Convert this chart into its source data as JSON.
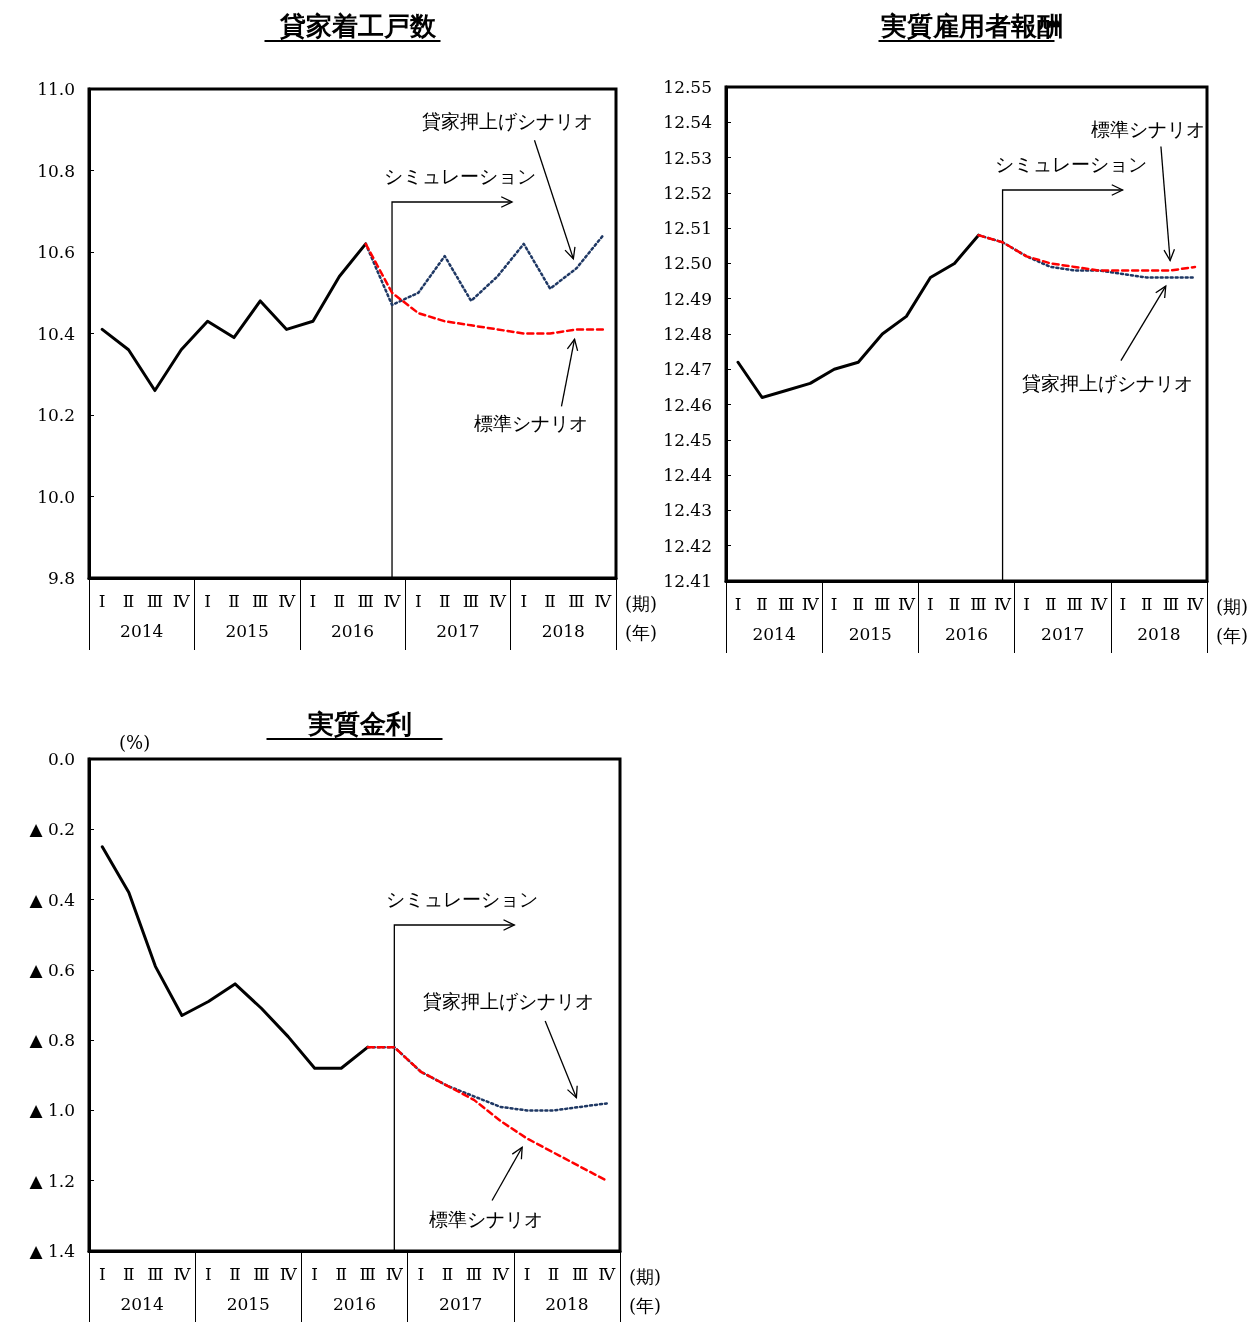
{
  "chart_data": [
    {
      "type": "line",
      "title": "貸家着工戸数",
      "xlabel": "(期)",
      "marker": "none",
      "grid": false,
      "legend": false,
      "categories": [
        "Ⅰ",
        "Ⅱ",
        "Ⅲ",
        "Ⅳ",
        "Ⅰ",
        "Ⅱ",
        "Ⅲ",
        "Ⅳ",
        "Ⅰ",
        "Ⅱ",
        "Ⅲ",
        "Ⅳ",
        "Ⅰ",
        "Ⅱ",
        "Ⅲ",
        "Ⅳ",
        "Ⅰ",
        "Ⅱ",
        "Ⅲ",
        "Ⅳ"
      ],
      "ylim": [
        9.8,
        11.0
      ],
      "yticks": [
        9.8,
        {
          "value": 10,
          "label": "10.0"
        },
        10.2,
        10.4,
        10.6,
        10.8,
        {
          "value": 11,
          "label": "11.0"
        }
      ],
      "series": [
        {
          "color": "#000000",
          "line_style": "solid",
          "values": [
            10.41,
            10.36,
            10.26,
            10.36,
            10.43,
            10.39,
            10.48,
            10.41,
            10.43,
            10.54,
            10.62,
            null,
            null,
            null,
            null,
            null,
            null,
            null,
            null,
            null
          ]
        },
        {
          "name": "標準シナリオ",
          "color": "#ff0000",
          "line_style": "dashed",
          "values": [
            null,
            null,
            null,
            null,
            null,
            null,
            null,
            null,
            null,
            null,
            10.62,
            10.5,
            10.45,
            10.43,
            10.42,
            10.41,
            10.4,
            10.4,
            10.41,
            10.41
          ]
        },
        {
          "name": "貸家押上げシナリオ",
          "color": "#1f3864",
          "line_style": "dotted",
          "values": [
            null,
            null,
            null,
            null,
            null,
            null,
            null,
            null,
            null,
            null,
            10.62,
            10.47,
            10.5,
            10.59,
            10.48,
            10.54,
            10.62,
            10.51,
            10.56,
            10.64
          ]
        }
      ],
      "annotations": [
        "シミュレーション",
        "2014",
        "2015",
        "2016",
        "2017",
        "2018",
        "(年)"
      ]
    },
    {
      "type": "line",
      "title": "実質雇用者報酬",
      "xlabel": "(期)",
      "marker": "none",
      "grid": false,
      "legend": false,
      "categories": [
        "Ⅰ",
        "Ⅱ",
        "Ⅲ",
        "Ⅳ",
        "Ⅰ",
        "Ⅱ",
        "Ⅲ",
        "Ⅳ",
        "Ⅰ",
        "Ⅱ",
        "Ⅲ",
        "Ⅳ",
        "Ⅰ",
        "Ⅱ",
        "Ⅲ",
        "Ⅳ",
        "Ⅰ",
        "Ⅱ",
        "Ⅲ",
        "Ⅳ"
      ],
      "ylim": [
        12.41,
        12.55
      ],
      "yticks": [
        12.41,
        12.42,
        12.43,
        12.44,
        12.45,
        12.46,
        12.47,
        12.48,
        12.49,
        {
          "value": 12.5,
          "label": "12.50"
        },
        12.51,
        12.52,
        12.53,
        12.54,
        12.55
      ],
      "series": [
        {
          "color": "#000000",
          "line_style": "solid",
          "values": [
            12.472,
            12.462,
            12.464,
            12.466,
            12.47,
            12.472,
            12.48,
            12.485,
            12.496,
            12.5,
            12.508,
            null,
            null,
            null,
            null,
            null,
            null,
            null,
            null,
            null
          ]
        },
        {
          "name": "標準シナリオ",
          "color": "#ff0000",
          "line_style": "dashed",
          "values": [
            null,
            null,
            null,
            null,
            null,
            null,
            null,
            null,
            null,
            null,
            12.508,
            12.506,
            12.502,
            12.5,
            12.499,
            12.498,
            12.498,
            12.498,
            12.498,
            12.499
          ]
        },
        {
          "name": "貸家押上げシナリオ",
          "color": "#1f3864",
          "line_style": "dotted",
          "values": [
            null,
            null,
            null,
            null,
            null,
            null,
            null,
            null,
            null,
            null,
            12.508,
            12.506,
            12.502,
            12.499,
            12.498,
            12.498,
            12.497,
            12.496,
            12.496,
            12.496
          ]
        }
      ],
      "annotations": [
        "シミュレーション",
        "2014",
        "2015",
        "2016",
        "2017",
        "2018",
        "(年)"
      ]
    },
    {
      "type": "line",
      "title": "実質金利",
      "ylabel": "(%)",
      "xlabel": "(期)",
      "marker": "none",
      "grid": false,
      "legend": false,
      "categories": [
        "Ⅰ",
        "Ⅱ",
        "Ⅲ",
        "Ⅳ",
        "Ⅰ",
        "Ⅱ",
        "Ⅲ",
        "Ⅳ",
        "Ⅰ",
        "Ⅱ",
        "Ⅲ",
        "Ⅳ",
        "Ⅰ",
        "Ⅱ",
        "Ⅲ",
        "Ⅳ",
        "Ⅰ",
        "Ⅱ",
        "Ⅲ",
        "Ⅳ"
      ],
      "ylim": [
        -1.4,
        0
      ],
      "yticks": [
        {
          "value": -1.4,
          "label": "▲ 1.4"
        },
        {
          "value": -1.2,
          "label": "▲ 1.2"
        },
        {
          "value": -1.0,
          "label": "▲ 1.0"
        },
        {
          "value": -0.8,
          "label": "▲ 0.8"
        },
        {
          "value": -0.6,
          "label": "▲ 0.6"
        },
        {
          "value": -0.4,
          "label": "▲ 0.4"
        },
        {
          "value": -0.2,
          "label": "▲ 0.2"
        },
        {
          "value": 0,
          "label": "0.0"
        }
      ],
      "series": [
        {
          "color": "#000000",
          "line_style": "solid",
          "values": [
            -0.25,
            -0.38,
            -0.59,
            -0.73,
            -0.69,
            -0.64,
            -0.71,
            -0.79,
            -0.88,
            -0.88,
            -0.82,
            null,
            null,
            null,
            null,
            null,
            null,
            null,
            null,
            null
          ]
        },
        {
          "name": "標準シナリオ",
          "color": "#ff0000",
          "line_style": "dashed",
          "values": [
            null,
            null,
            null,
            null,
            null,
            null,
            null,
            null,
            null,
            null,
            -0.82,
            -0.82,
            -0.89,
            -0.93,
            -0.97,
            -1.03,
            -1.08,
            -1.12,
            -1.16,
            -1.2
          ]
        },
        {
          "name": "貸家押上げシナリオ",
          "color": "#1f3864",
          "line_style": "dotted",
          "values": [
            null,
            null,
            null,
            null,
            null,
            null,
            null,
            null,
            null,
            null,
            -0.82,
            -0.82,
            -0.89,
            -0.93,
            -0.96,
            -0.99,
            -1.0,
            -1.0,
            -0.99,
            -0.98
          ]
        }
      ],
      "annotations": [
        "シミュレーション",
        "2014",
        "2015",
        "2016",
        "2017",
        "2018",
        "(年)"
      ]
    }
  ]
}
